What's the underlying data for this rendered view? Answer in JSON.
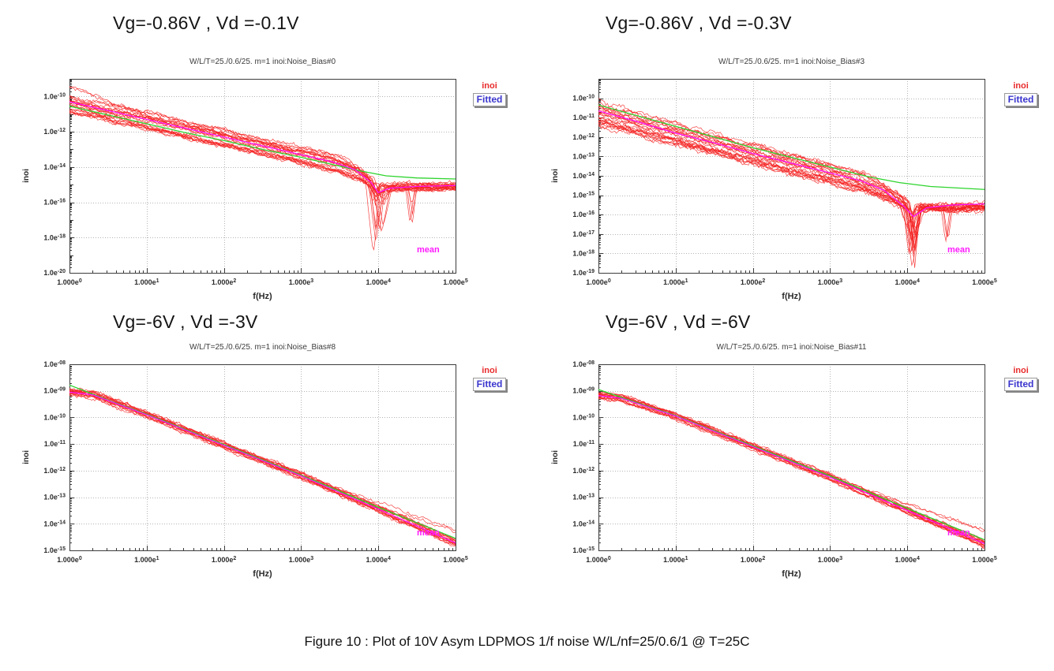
{
  "page": {
    "caption": "Figure 10 : Plot of 10V Asym LDPMOS 1/f noise W/L/nf=25/0.6/1 @ T=25C"
  },
  "colors": {
    "trace": "#f52222",
    "fitted": "#2ed42e",
    "mean": "#ff10ff",
    "grid": "#b5b5b5",
    "frame": "#3c3c3c",
    "tick_text": "#2b2b2b"
  },
  "chart_data": [
    {
      "type": "line",
      "title": "Vg=-0.86V , Vd =-0.1V",
      "subtitle": "W/L/T=25./0.6/25. m=1  inoi:Noise_Bias#0",
      "xlabel": "f(Hz)",
      "ylabel": "inoi",
      "legend": {
        "series": "inoi",
        "fitted": "Fitted"
      },
      "mean_label": "mean",
      "x_tick_labels": [
        "1.000e0",
        "1.000e1",
        "1.000e2",
        "1.000e3",
        "1.000e4",
        "1.000e5"
      ],
      "x_tick_exps": [
        0,
        1,
        2,
        3,
        4,
        5
      ],
      "y_tick_labels": [
        "1.0e-10",
        "1.0e-12",
        "1.0e-14",
        "1.0e-16",
        "1.0e-18",
        "1.0e-20"
      ],
      "y_tick_exps": [
        -10,
        -12,
        -14,
        -16,
        -18,
        -20
      ],
      "xlim_exp": [
        0,
        5
      ],
      "ylim_exp": [
        -20,
        -9
      ],
      "grid": true,
      "legend_position": "right-top",
      "series": {
        "mean": [
          [
            0,
            -10.3
          ],
          [
            0.5,
            -10.8
          ],
          [
            1,
            -11.3
          ],
          [
            1.5,
            -11.8
          ],
          [
            2,
            -12.3
          ],
          [
            2.5,
            -12.8
          ],
          [
            3,
            -13.3
          ],
          [
            3.4,
            -13.7
          ],
          [
            3.7,
            -14.15
          ],
          [
            3.9,
            -14.85
          ],
          [
            4.0,
            -15.45
          ],
          [
            4.15,
            -15.2
          ],
          [
            4.5,
            -15.1
          ],
          [
            5,
            -15.05
          ]
        ],
        "fitted": [
          [
            0,
            -10.55
          ],
          [
            0.5,
            -11.05
          ],
          [
            1,
            -11.55
          ],
          [
            1.5,
            -12.05
          ],
          [
            2,
            -12.5
          ],
          [
            2.5,
            -13.0
          ],
          [
            3,
            -13.45
          ],
          [
            3.5,
            -13.95
          ],
          [
            3.8,
            -14.25
          ],
          [
            4.1,
            -14.5
          ],
          [
            4.5,
            -14.62
          ],
          [
            5,
            -14.68
          ]
        ],
        "noise": {
          "trace_base": [
            [
              0,
              -10.45
            ],
            [
              0.6,
              -11.0
            ],
            [
              1,
              -11.35
            ],
            [
              2,
              -12.35
            ],
            [
              3,
              -13.3
            ],
            [
              3.5,
              -13.85
            ],
            [
              3.75,
              -14.35
            ],
            [
              3.95,
              -15.0
            ],
            [
              4.1,
              -15.15
            ],
            [
              4.3,
              -15.12
            ],
            [
              5,
              -15.1
            ]
          ],
          "num_traces": 24,
          "spread": 0.5,
          "jitter": 0.11,
          "notch": {
            "x": 4.0,
            "min_depth": 0.3,
            "max_depth": 4.0
          },
          "notch2": {
            "x": 4.45,
            "prob": 0.12,
            "depth": 1.8
          },
          "start_flare": 4,
          "outlier_traces": 0,
          "seed": 7
        }
      }
    },
    {
      "type": "line",
      "title": "Vg=-0.86V , Vd =-0.3V",
      "subtitle": "W/L/T=25./0.6/25. m=1  inoi:Noise_Bias#3",
      "xlabel": "f(Hz)",
      "ylabel": "inoi",
      "legend": {
        "series": "inoi",
        "fitted": "Fitted"
      },
      "mean_label": "mean",
      "x_tick_labels": [
        "1.000e0",
        "1.000e1",
        "1.000e2",
        "1.000e3",
        "1.000e4",
        "1.000e5"
      ],
      "x_tick_exps": [
        0,
        1,
        2,
        3,
        4,
        5
      ],
      "y_tick_labels": [
        "1.0e-10",
        "1.0e-11",
        "1.0e-12",
        "1.0e-13",
        "1.0e-14",
        "1.0e-15",
        "1.0e-16",
        "1.0e-17",
        "1.0e-18",
        "1.0e-19"
      ],
      "y_tick_exps": [
        -10,
        -11,
        -12,
        -13,
        -14,
        -15,
        -16,
        -17,
        -18,
        -19
      ],
      "xlim_exp": [
        0,
        5
      ],
      "ylim_exp": [
        -19,
        -9
      ],
      "grid": true,
      "legend_position": "right-top",
      "series": {
        "mean": [
          [
            0,
            -10.65
          ],
          [
            0.5,
            -11.2
          ],
          [
            1,
            -11.8
          ],
          [
            1.5,
            -12.3
          ],
          [
            2,
            -12.85
          ],
          [
            2.5,
            -13.35
          ],
          [
            3,
            -13.85
          ],
          [
            3.4,
            -14.25
          ],
          [
            3.7,
            -14.75
          ],
          [
            3.95,
            -15.55
          ],
          [
            4.08,
            -16.1
          ],
          [
            4.25,
            -15.65
          ],
          [
            4.6,
            -15.5
          ],
          [
            5,
            -15.45
          ]
        ],
        "fitted": [
          [
            0,
            -10.35
          ],
          [
            0.5,
            -10.9
          ],
          [
            1,
            -11.45
          ],
          [
            1.5,
            -12.0
          ],
          [
            2,
            -12.55
          ],
          [
            2.5,
            -13.05
          ],
          [
            3,
            -13.55
          ],
          [
            3.5,
            -14.05
          ],
          [
            3.9,
            -14.35
          ],
          [
            4.3,
            -14.55
          ],
          [
            5,
            -14.7
          ]
        ],
        "noise": {
          "trace_base": [
            [
              0,
              -10.9
            ],
            [
              0.6,
              -11.5
            ],
            [
              1,
              -11.85
            ],
            [
              2,
              -12.9
            ],
            [
              3,
              -13.9
            ],
            [
              3.5,
              -14.45
            ],
            [
              3.8,
              -15.05
            ],
            [
              4.05,
              -15.6
            ],
            [
              4.25,
              -15.65
            ],
            [
              5,
              -15.6
            ]
          ],
          "num_traces": 24,
          "spread": 0.55,
          "jitter": 0.12,
          "notch": {
            "x": 4.05,
            "min_depth": 0.3,
            "max_depth": 3.2
          },
          "notch2": {
            "x": 4.5,
            "prob": 0.12,
            "depth": 1.9
          },
          "start_flare": 3,
          "outlier_traces": 0,
          "seed": 11
        }
      }
    },
    {
      "type": "line",
      "title": "Vg=-6V , Vd =-3V",
      "subtitle": "W/L/T=25./0.6/25. m=1  inoi:Noise_Bias#8",
      "xlabel": "f(Hz)",
      "ylabel": "inoi",
      "legend": {
        "series": "inoi",
        "fitted": "Fitted"
      },
      "mean_label": "mean",
      "x_tick_labels": [
        "1.000e0",
        "1.000e1",
        "1.000e2",
        "1.000e3",
        "1.000e4",
        "1.000e5"
      ],
      "x_tick_exps": [
        0,
        1,
        2,
        3,
        4,
        5
      ],
      "y_tick_labels": [
        "1.0e-08",
        "1.0e-09",
        "1.0e-10",
        "1.0e-11",
        "1.0e-12",
        "1.0e-13",
        "1.0e-14",
        "1.0e-15"
      ],
      "y_tick_exps": [
        -8,
        -9,
        -10,
        -11,
        -12,
        -13,
        -14,
        -15
      ],
      "xlim_exp": [
        0,
        5
      ],
      "ylim_exp": [
        -15,
        -8
      ],
      "grid": true,
      "legend_position": "right-top",
      "series": {
        "mean": [
          [
            0,
            -9.05
          ],
          [
            0.3,
            -9.15
          ],
          [
            1,
            -9.9
          ],
          [
            2,
            -11.05
          ],
          [
            3,
            -12.2
          ],
          [
            4,
            -13.45
          ],
          [
            5,
            -14.72
          ]
        ],
        "fitted": [
          [
            0,
            -8.78
          ],
          [
            0.5,
            -9.35
          ],
          [
            1,
            -9.88
          ],
          [
            2,
            -11.02
          ],
          [
            3,
            -12.17
          ],
          [
            4,
            -13.38
          ],
          [
            5,
            -14.55
          ]
        ],
        "noise": {
          "trace_base": [
            [
              0,
              -9.05
            ],
            [
              0.3,
              -9.15
            ],
            [
              1,
              -9.9
            ],
            [
              2,
              -11.05
            ],
            [
              3,
              -12.2
            ],
            [
              4,
              -13.45
            ],
            [
              5,
              -14.72
            ]
          ],
          "num_traces": 18,
          "spread": 0.12,
          "jitter": 0.06,
          "notch": null,
          "notch2": null,
          "start_flare": 0,
          "outlier_traces": 2,
          "seed": 23
        }
      }
    },
    {
      "type": "line",
      "title": "Vg=-6V , Vd =-6V",
      "subtitle": "W/L/T=25./0.6/25. m=1  inoi:Noise_Bias#11",
      "xlabel": "f(Hz)",
      "ylabel": "inoi",
      "legend": {
        "series": "inoi",
        "fitted": "Fitted"
      },
      "mean_label": "mean",
      "x_tick_labels": [
        "1.000e0",
        "1.000e1",
        "1.000e2",
        "1.000e3",
        "1.000e4",
        "1.000e5"
      ],
      "x_tick_exps": [
        0,
        1,
        2,
        3,
        4,
        5
      ],
      "y_tick_labels": [
        "1.0e-08",
        "1.0e-09",
        "1.0e-10",
        "1.0e-11",
        "1.0e-12",
        "1.0e-13",
        "1.0e-14",
        "1.0e-15"
      ],
      "y_tick_exps": [
        -8,
        -9,
        -10,
        -11,
        -12,
        -13,
        -14,
        -15
      ],
      "xlim_exp": [
        0,
        5
      ],
      "ylim_exp": [
        -15,
        -8
      ],
      "grid": true,
      "legend_position": "right-top",
      "series": {
        "mean": [
          [
            0,
            -9.18
          ],
          [
            0.3,
            -9.28
          ],
          [
            1,
            -9.95
          ],
          [
            2,
            -11.1
          ],
          [
            3,
            -12.25
          ],
          [
            4,
            -13.5
          ],
          [
            5,
            -14.75
          ]
        ],
        "fitted": [
          [
            0,
            -8.95
          ],
          [
            0.5,
            -9.45
          ],
          [
            1,
            -9.93
          ],
          [
            2,
            -11.07
          ],
          [
            3,
            -12.2
          ],
          [
            4,
            -13.42
          ],
          [
            5,
            -14.6
          ]
        ],
        "noise": {
          "trace_base": [
            [
              0,
              -9.18
            ],
            [
              0.3,
              -9.28
            ],
            [
              1,
              -9.95
            ],
            [
              2,
              -11.1
            ],
            [
              3,
              -12.25
            ],
            [
              4,
              -13.5
            ],
            [
              5,
              -14.75
            ]
          ],
          "num_traces": 18,
          "spread": 0.12,
          "jitter": 0.06,
          "notch": null,
          "notch2": null,
          "start_flare": 0,
          "outlier_traces": 2,
          "seed": 31
        }
      }
    }
  ]
}
